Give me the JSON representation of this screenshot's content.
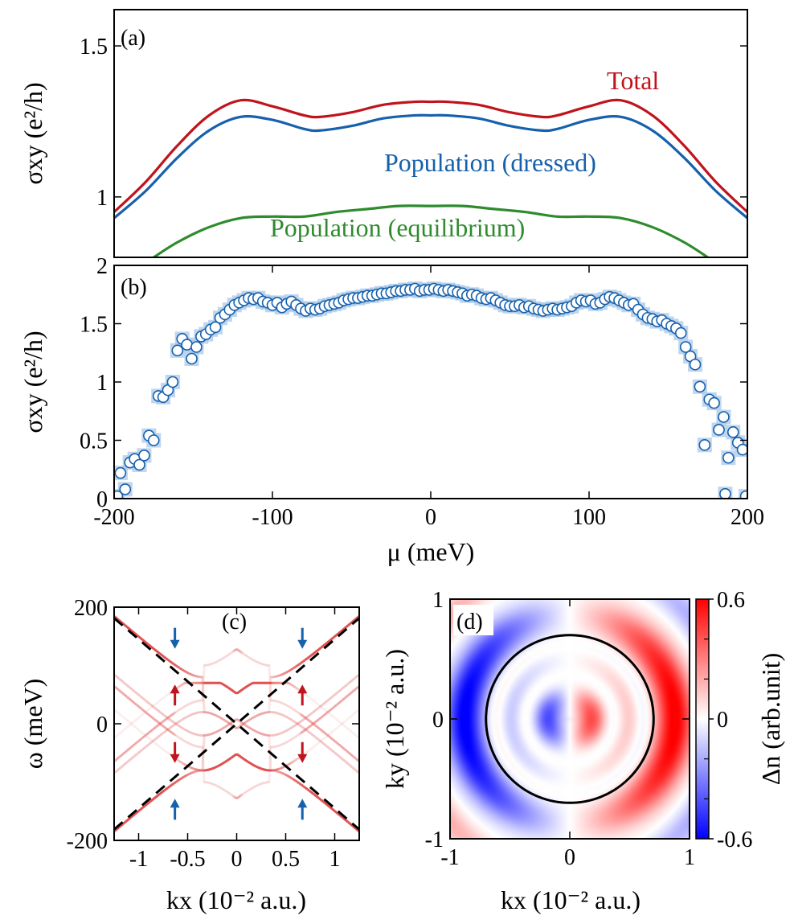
{
  "colors": {
    "total": "#c0141c",
    "dressed": "#1660ac",
    "equilibrium": "#2e8b2e",
    "marker_edge": "#1660ac",
    "marker_band": "#a9c8e8",
    "arrow_blue": "#1660ac",
    "arrow_red": "#c0141c",
    "band": "#e05050",
    "cmap_neg": "#0000ff",
    "cmap_pos": "#ff0000"
  },
  "chart_data": [
    {
      "id": "a",
      "type": "line",
      "panel_label": "(a)",
      "ylabel": "σxy (e²/h)",
      "xlim": [
        -200,
        200
      ],
      "ylim": [
        0.8,
        1.62
      ],
      "yticks": [
        {
          "v": 1,
          "label": "1"
        },
        {
          "v": 1.5,
          "label": "1.5"
        }
      ],
      "series": [
        {
          "name": "Total",
          "color_key": "total",
          "x": [
            -200,
            -180,
            -160,
            -140,
            -120,
            -100,
            -80,
            -70,
            -50,
            -30,
            -10,
            0,
            10,
            30,
            50,
            70,
            80,
            100,
            120,
            140,
            160,
            180,
            200
          ],
          "y": [
            0.95,
            1.05,
            1.17,
            1.27,
            1.32,
            1.3,
            1.27,
            1.265,
            1.28,
            1.305,
            1.315,
            1.315,
            1.315,
            1.305,
            1.28,
            1.265,
            1.27,
            1.3,
            1.32,
            1.27,
            1.17,
            1.05,
            0.95
          ]
        },
        {
          "name": "Population (dressed)",
          "color_key": "dressed",
          "x": [
            -200,
            -180,
            -160,
            -140,
            -120,
            -100,
            -80,
            -70,
            -50,
            -30,
            -10,
            0,
            10,
            30,
            50,
            70,
            80,
            100,
            120,
            140,
            160,
            180,
            200
          ],
          "y": [
            0.93,
            1.02,
            1.13,
            1.22,
            1.265,
            1.255,
            1.225,
            1.22,
            1.235,
            1.26,
            1.27,
            1.27,
            1.27,
            1.26,
            1.235,
            1.22,
            1.225,
            1.255,
            1.265,
            1.22,
            1.13,
            1.02,
            0.93
          ]
        },
        {
          "name": "Population (equilibrium)",
          "color_key": "equilibrium",
          "x": [
            -175,
            -160,
            -140,
            -120,
            -100,
            -80,
            -60,
            -40,
            -20,
            0,
            20,
            40,
            60,
            80,
            100,
            120,
            140,
            160,
            175
          ],
          "y": [
            0.8,
            0.85,
            0.9,
            0.93,
            0.935,
            0.935,
            0.95,
            0.96,
            0.97,
            0.97,
            0.97,
            0.96,
            0.95,
            0.935,
            0.935,
            0.93,
            0.9,
            0.85,
            0.8
          ]
        }
      ]
    },
    {
      "id": "b",
      "type": "scatter",
      "panel_label": "(b)",
      "ylabel": "σxy (e²/h)",
      "xlabel": "μ (meV)",
      "xlim": [
        -200,
        200
      ],
      "ylim": [
        0,
        2
      ],
      "xticks": [
        {
          "v": -200,
          "label": "-200"
        },
        {
          "v": -100,
          "label": "-100"
        },
        {
          "v": 0,
          "label": "0"
        },
        {
          "v": 100,
          "label": "100"
        },
        {
          "v": 200,
          "label": "200"
        }
      ],
      "yticks": [
        {
          "v": 0,
          "label": "0"
        },
        {
          "v": 0.5,
          "label": "0.5"
        },
        {
          "v": 1,
          "label": "1"
        },
        {
          "v": 1.5,
          "label": "1.5"
        },
        {
          "v": 2,
          "label": "2"
        }
      ],
      "points": [
        [
          -198,
          0.02
        ],
        [
          -196,
          0.22
        ],
        [
          -193,
          0.08
        ],
        [
          -190,
          0.31
        ],
        [
          -187,
          0.34
        ],
        [
          -184,
          0.29
        ],
        [
          -181,
          0.37
        ],
        [
          -178,
          0.54
        ],
        [
          -175,
          0.5
        ],
        [
          -172,
          0.88
        ],
        [
          -169,
          0.87
        ],
        [
          -166,
          0.93
        ],
        [
          -163,
          1.0
        ],
        [
          -160,
          1.27
        ],
        [
          -157,
          1.37
        ],
        [
          -154,
          1.32
        ],
        [
          -151,
          1.2
        ],
        [
          -148,
          1.3
        ],
        [
          -145,
          1.39
        ],
        [
          -142,
          1.41
        ],
        [
          -139,
          1.45
        ],
        [
          -136,
          1.47
        ],
        [
          -133,
          1.55
        ],
        [
          -130,
          1.58
        ],
        [
          -127,
          1.62
        ],
        [
          -124,
          1.66
        ],
        [
          -121,
          1.68
        ],
        [
          -118,
          1.7
        ],
        [
          -115,
          1.72
        ],
        [
          -112,
          1.71
        ],
        [
          -109,
          1.72
        ],
        [
          -106,
          1.69
        ],
        [
          -103,
          1.68
        ],
        [
          -100,
          1.66
        ],
        [
          -97,
          1.68
        ],
        [
          -94,
          1.64
        ],
        [
          -91,
          1.67
        ],
        [
          -88,
          1.69
        ],
        [
          -85,
          1.66
        ],
        [
          -82,
          1.63
        ],
        [
          -79,
          1.61
        ],
        [
          -76,
          1.63
        ],
        [
          -73,
          1.62
        ],
        [
          -70,
          1.63
        ],
        [
          -67,
          1.65
        ],
        [
          -64,
          1.66
        ],
        [
          -61,
          1.67
        ],
        [
          -58,
          1.68
        ],
        [
          -55,
          1.7
        ],
        [
          -52,
          1.71
        ],
        [
          -49,
          1.72
        ],
        [
          -46,
          1.72
        ],
        [
          -43,
          1.73
        ],
        [
          -40,
          1.74
        ],
        [
          -37,
          1.74
        ],
        [
          -34,
          1.75
        ],
        [
          -31,
          1.76
        ],
        [
          -28,
          1.76
        ],
        [
          -25,
          1.77
        ],
        [
          -22,
          1.78
        ],
        [
          -19,
          1.78
        ],
        [
          -16,
          1.79
        ],
        [
          -13,
          1.79
        ],
        [
          -10,
          1.8
        ],
        [
          -7,
          1.78
        ],
        [
          -4,
          1.79
        ],
        [
          -1,
          1.79
        ],
        [
          2,
          1.8
        ],
        [
          5,
          1.79
        ],
        [
          8,
          1.78
        ],
        [
          11,
          1.79
        ],
        [
          14,
          1.78
        ],
        [
          17,
          1.77
        ],
        [
          20,
          1.76
        ],
        [
          23,
          1.74
        ],
        [
          26,
          1.75
        ],
        [
          29,
          1.74
        ],
        [
          32,
          1.72
        ],
        [
          35,
          1.71
        ],
        [
          38,
          1.72
        ],
        [
          41,
          1.7
        ],
        [
          44,
          1.68
        ],
        [
          47,
          1.66
        ],
        [
          50,
          1.65
        ],
        [
          53,
          1.65
        ],
        [
          56,
          1.66
        ],
        [
          59,
          1.64
        ],
        [
          62,
          1.65
        ],
        [
          65,
          1.63
        ],
        [
          68,
          1.62
        ],
        [
          71,
          1.61
        ],
        [
          74,
          1.62
        ],
        [
          77,
          1.63
        ],
        [
          80,
          1.62
        ],
        [
          83,
          1.63
        ],
        [
          86,
          1.64
        ],
        [
          89,
          1.65
        ],
        [
          92,
          1.68
        ],
        [
          95,
          1.7
        ],
        [
          98,
          1.69
        ],
        [
          101,
          1.7
        ],
        [
          104,
          1.67
        ],
        [
          107,
          1.68
        ],
        [
          110,
          1.71
        ],
        [
          113,
          1.73
        ],
        [
          116,
          1.72
        ],
        [
          119,
          1.7
        ],
        [
          122,
          1.68
        ],
        [
          125,
          1.66
        ],
        [
          128,
          1.67
        ],
        [
          131,
          1.62
        ],
        [
          134,
          1.58
        ],
        [
          137,
          1.55
        ],
        [
          140,
          1.54
        ],
        [
          143,
          1.52
        ],
        [
          146,
          1.53
        ],
        [
          149,
          1.5
        ],
        [
          152,
          1.48
        ],
        [
          155,
          1.46
        ],
        [
          158,
          1.42
        ],
        [
          161,
          1.3
        ],
        [
          164,
          1.22
        ],
        [
          167,
          1.15
        ],
        [
          170,
          0.96
        ],
        [
          173,
          0.46
        ],
        [
          176,
          0.85
        ],
        [
          179,
          0.82
        ],
        [
          182,
          0.59
        ],
        [
          185,
          0.7
        ],
        [
          188,
          0.35
        ],
        [
          191,
          0.57
        ],
        [
          194,
          0.48
        ],
        [
          197,
          0.42
        ],
        [
          199,
          0.02
        ],
        [
          186,
          0.04
        ]
      ]
    },
    {
      "id": "c",
      "type": "line",
      "panel_label": "(c)",
      "ylabel": "ω (meV)",
      "xlabel": "kx (10⁻² a.u.)",
      "xlim": [
        -1.25,
        1.25
      ],
      "ylim": [
        -200,
        200
      ],
      "xticks": [
        {
          "v": -1,
          "label": "-1"
        },
        {
          "v": -0.5,
          "label": "-0.5"
        },
        {
          "v": 0,
          "label": "0"
        },
        {
          "v": 0.5,
          "label": "0.5"
        },
        {
          "v": 1,
          "label": "1"
        }
      ],
      "yticks": [
        {
          "v": -200,
          "label": "-200"
        },
        {
          "v": 0,
          "label": "0"
        },
        {
          "v": 200,
          "label": "200"
        }
      ],
      "photon_energy": 100,
      "gap_shift": 30,
      "arrows": [
        {
          "x": -0.63,
          "y": 148,
          "dir": "down",
          "color_key": "arrow_blue"
        },
        {
          "x": 0.67,
          "y": 148,
          "dir": "down",
          "color_key": "arrow_blue"
        },
        {
          "x": -0.63,
          "y": 48,
          "dir": "up",
          "color_key": "arrow_red"
        },
        {
          "x": 0.67,
          "y": 48,
          "dir": "up",
          "color_key": "arrow_red"
        },
        {
          "x": -0.63,
          "y": -48,
          "dir": "down",
          "color_key": "arrow_red"
        },
        {
          "x": 0.67,
          "y": -48,
          "dir": "down",
          "color_key": "arrow_red"
        },
        {
          "x": -0.63,
          "y": -148,
          "dir": "up",
          "color_key": "arrow_blue"
        },
        {
          "x": 0.67,
          "y": -148,
          "dir": "up",
          "color_key": "arrow_blue"
        }
      ]
    },
    {
      "id": "d",
      "type": "heatmap",
      "panel_label": "(d)",
      "ylabel": "ky (10⁻² a.u.)",
      "xlabel": "kx (10⁻² a.u.)",
      "colorbar_label": "Δn (arb.unit)",
      "xlim": [
        -1,
        1
      ],
      "ylim": [
        -1,
        1
      ],
      "clim": [
        -0.6,
        0.6
      ],
      "xticks": [
        {
          "v": -1,
          "label": "-1"
        },
        {
          "v": 0,
          "label": "0"
        },
        {
          "v": 1,
          "label": "1"
        }
      ],
      "yticks": [
        {
          "v": -1,
          "label": "-1"
        },
        {
          "v": 0,
          "label": "0"
        },
        {
          "v": 1,
          "label": "1"
        }
      ],
      "cticks": [
        {
          "v": -0.6,
          "label": "-0.6"
        },
        {
          "v": 0,
          "label": "0"
        },
        {
          "v": 0.6,
          "label": "0.6"
        }
      ],
      "circle_radius": 0.7
    }
  ]
}
